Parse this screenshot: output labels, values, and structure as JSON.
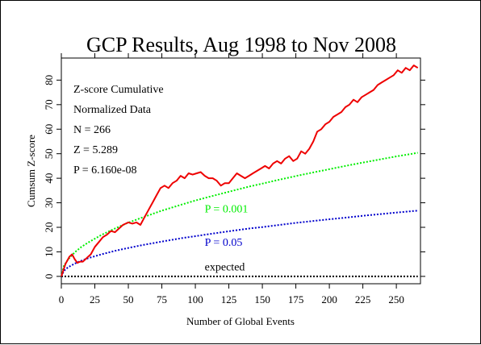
{
  "chart_data": {
    "type": "line",
    "title": "GCP Results, Aug 1998 to Nov 2008",
    "xlabel": "Number of Global Events",
    "ylabel": "Cumsum Z-score",
    "xlim": [
      0,
      268
    ],
    "ylim": [
      -3,
      89
    ],
    "x_ticks": [
      0,
      25,
      50,
      75,
      100,
      125,
      150,
      175,
      200,
      225,
      250
    ],
    "y_ticks": [
      0,
      10,
      20,
      30,
      40,
      50,
      60,
      70,
      80
    ],
    "stats_lines": [
      "Z-score Cumulative",
      "Normalized Data",
      "N = 266",
      "Z = 5.289",
      "P = 6.160e-08"
    ],
    "series": [
      {
        "name": "",
        "color": "#ee0000",
        "style": "solid",
        "x": [
          0,
          3,
          6,
          8,
          10,
          12,
          14,
          16,
          18,
          20,
          22,
          25,
          28,
          31,
          34,
          37,
          40,
          43,
          46,
          50,
          53,
          56,
          59,
          62,
          65,
          68,
          71,
          74,
          77,
          80,
          83,
          86,
          89,
          92,
          95,
          98,
          101,
          104,
          107,
          110,
          113,
          116,
          119,
          122,
          125,
          128,
          131,
          134,
          137,
          140,
          143,
          146,
          149,
          152,
          155,
          158,
          161,
          164,
          167,
          170,
          173,
          176,
          179,
          182,
          185,
          188,
          191,
          194,
          197,
          200,
          203,
          206,
          209,
          212,
          215,
          218,
          221,
          224,
          227,
          230,
          233,
          236,
          239,
          242,
          245,
          248,
          251,
          254,
          257,
          260,
          263,
          266
        ],
        "y": [
          0,
          5,
          8,
          9,
          7,
          5.5,
          6,
          6,
          7,
          8,
          9,
          12,
          14,
          16,
          17,
          18.5,
          18,
          19.5,
          21,
          22,
          21.5,
          22,
          21,
          24,
          27,
          30,
          33,
          36,
          37,
          36,
          38,
          39,
          41,
          40,
          42,
          41.5,
          42,
          42.5,
          41,
          40,
          40,
          39,
          37,
          38,
          38,
          40,
          42,
          41,
          40,
          41,
          42,
          43,
          44,
          45,
          44,
          46,
          47,
          46,
          48,
          49,
          47,
          48,
          51,
          50,
          52,
          55,
          59,
          60,
          62,
          63,
          65,
          66,
          67,
          69,
          70,
          72,
          71,
          73,
          74,
          75,
          76,
          78,
          79,
          80,
          81,
          82,
          84,
          83,
          85,
          84,
          86,
          85
        ]
      },
      {
        "name": "",
        "color": "#00ee00",
        "style": "dotted",
        "x": [
          0,
          2,
          5,
          10,
          15,
          20,
          30,
          40,
          50,
          60,
          75,
          90,
          100,
          110,
          125,
          140,
          150,
          160,
          175,
          190,
          200,
          210,
          225,
          240,
          250,
          260,
          266
        ],
        "y": [
          0,
          4.4,
          6.9,
          9.8,
          12,
          13.8,
          16.9,
          19.5,
          21.9,
          23.9,
          26.8,
          29.3,
          30.9,
          32.4,
          34.5,
          36.6,
          37.8,
          39.1,
          40.9,
          42.6,
          43.7,
          44.8,
          46.4,
          47.9,
          48.9,
          49.8,
          50.4
        ]
      },
      {
        "name": "",
        "color": "#0000cc",
        "style": "dotted",
        "x": [
          0,
          2,
          5,
          10,
          15,
          20,
          30,
          40,
          50,
          60,
          75,
          90,
          100,
          110,
          125,
          140,
          150,
          160,
          175,
          190,
          200,
          210,
          225,
          240,
          250,
          260,
          266
        ],
        "y": [
          0,
          2.3,
          3.7,
          5.2,
          6.4,
          7.4,
          9,
          10.4,
          11.6,
          12.7,
          14.2,
          15.6,
          16.4,
          17.2,
          18.4,
          19.5,
          20.1,
          20.8,
          21.8,
          22.7,
          23.3,
          23.8,
          24.7,
          25.5,
          26,
          26.5,
          26.8
        ]
      },
      {
        "name": "",
        "color": "#000000",
        "style": "dotted",
        "x": [
          0,
          266
        ],
        "y": [
          0,
          0
        ]
      }
    ],
    "annotations": [
      {
        "text": "P = 0.001",
        "color": "#00ee00",
        "x": 107,
        "y": 26
      },
      {
        "text": "P = 0.05",
        "color": "#0000cc",
        "x": 107,
        "y": 12.5
      },
      {
        "text": "expected",
        "color": "#000000",
        "x": 107,
        "y": 2.5
      }
    ],
    "grid": false,
    "legend": "none"
  }
}
